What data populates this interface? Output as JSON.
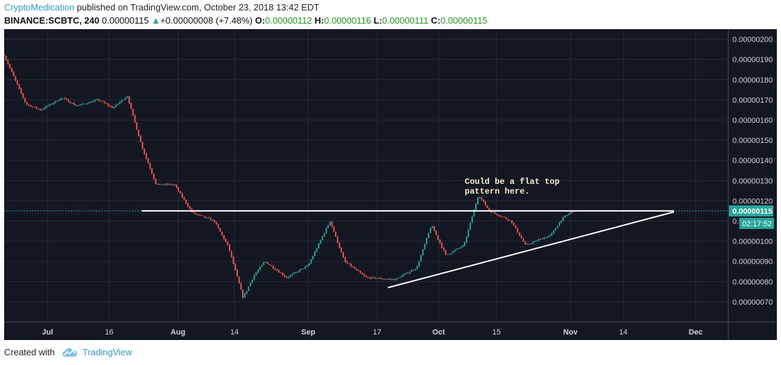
{
  "header": {
    "author": "CryptoMedication",
    "published_text": " published on TradingView.com, October 23, 2018 13:42 EDT"
  },
  "symbol_bar": {
    "symbol": "BINANCE:SCBTC, 240",
    "last": "0.00000115",
    "change_arrow": "▲",
    "change": "+0.00000008 (+7.48%)",
    "o_label": "O:",
    "o_value": "0.00000112",
    "h_label": "H:",
    "h_value": "0.00000116",
    "l_label": "L:",
    "l_value": "0.00000111",
    "c_label": "C:",
    "c_value": "0.00000115"
  },
  "footer": {
    "created_with": "Created with",
    "brand": "TradingView",
    "logo_icon": "tradingview-cloud-icon"
  },
  "colors": {
    "background": "#131722",
    "grid": "#262a35",
    "up": "#26a69a",
    "down": "#ef5350",
    "annotation": "#f5eec8",
    "price_tag": "#26a69a"
  },
  "chart_data": {
    "type": "candlestick",
    "x_tick_labels": [
      "Jul",
      "16",
      "Aug",
      "14",
      "Sep",
      "17",
      "Oct",
      "15",
      "Nov",
      "14",
      "Dec"
    ],
    "y_tick_labels": [
      "0.00000200",
      "0.00000190",
      "0.00000180",
      "0.00000170",
      "0.00000160",
      "0.00000150",
      "0.00000140",
      "0.00000130",
      "0.00000120",
      "0.00000110",
      "0.00000100",
      "0.00000090",
      "0.00000080",
      "0.00000070"
    ],
    "y_range": [
      6e-07,
      2.05e-06
    ],
    "last_price_label": "0.00000115",
    "countdown_label": "02:17:52",
    "annotation_text": "Could be a flat top\npattern here.",
    "price_path": [
      [
        0.0,
        1.92e-06
      ],
      [
        0.03,
        1.68e-06
      ],
      [
        0.05,
        1.65e-06
      ],
      [
        0.08,
        1.71e-06
      ],
      [
        0.1,
        1.67e-06
      ],
      [
        0.13,
        1.7e-06
      ],
      [
        0.15,
        1.66e-06
      ],
      [
        0.17,
        1.72e-06
      ],
      [
        0.19,
        1.47e-06
      ],
      [
        0.21,
        1.28e-06
      ],
      [
        0.235,
        1.28e-06
      ],
      [
        0.26,
        1.14e-06
      ],
      [
        0.29,
        1.1e-06
      ],
      [
        0.31,
        9.7e-07
      ],
      [
        0.33,
        7.2e-07
      ],
      [
        0.345,
        8.3e-07
      ],
      [
        0.36,
        9e-07
      ],
      [
        0.39,
        8.2e-07
      ],
      [
        0.42,
        8.8e-07
      ],
      [
        0.45,
        1.1e-06
      ],
      [
        0.47,
        9e-07
      ],
      [
        0.5,
        8.2e-07
      ],
      [
        0.54,
        8.1e-07
      ],
      [
        0.57,
        8.7e-07
      ],
      [
        0.59,
        1.08e-06
      ],
      [
        0.61,
        9.3e-07
      ],
      [
        0.635,
        9.8e-07
      ],
      [
        0.655,
        1.23e-06
      ],
      [
        0.67,
        1.15e-06
      ],
      [
        0.7,
        1.1e-06
      ],
      [
        0.72,
        9.8e-07
      ],
      [
        0.74,
        1.01e-06
      ],
      [
        0.755,
        1.03e-06
      ],
      [
        0.77,
        1.11e-06
      ],
      [
        0.785,
        1.15e-06
      ]
    ],
    "flat_top": {
      "x_start": 0.19,
      "x_end": 0.925,
      "value": 1.15e-06
    },
    "rising_trendline": {
      "x_start": 0.53,
      "y_start": 7.7e-07,
      "x_end": 0.925,
      "y_end": 1.145e-06
    }
  }
}
